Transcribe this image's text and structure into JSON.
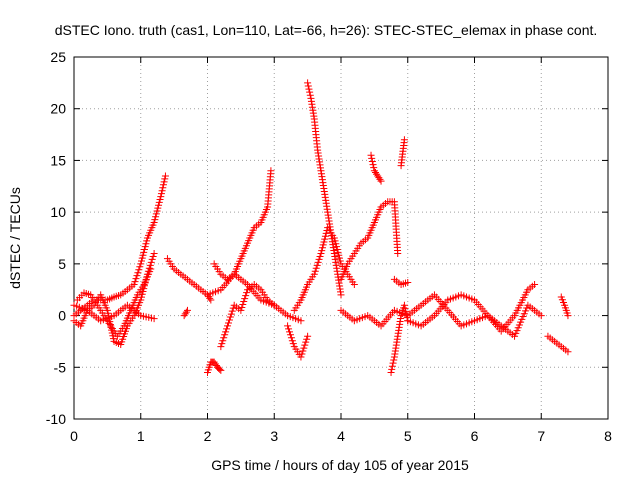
{
  "chart_data": {
    "type": "scatter",
    "title": "dSTEC Iono. truth (cas1, Lon=110, Lat=-66, h=26): STEC-STEC_elemax in phase cont.",
    "xlabel": "GPS time / hours of day 105 of year 2015",
    "ylabel": "dSTEC  / TECUs",
    "xlim": [
      0,
      8
    ],
    "ylim": [
      -10,
      25
    ],
    "xticks": [
      "0",
      "1",
      "2",
      "3",
      "4",
      "5",
      "6",
      "7",
      "8"
    ],
    "yticks": [
      "-10",
      "-5",
      "0",
      "5",
      "10",
      "15",
      "20",
      "25"
    ],
    "grid": true,
    "marker": "+",
    "color": "#ff0000",
    "series": [
      {
        "x": [
          0.0,
          0.1,
          0.2,
          0.3,
          0.4,
          0.5,
          0.6,
          0.7,
          0.8,
          0.9,
          1.0,
          1.1,
          1.2,
          1.3,
          1.37
        ],
        "y": [
          0,
          0.5,
          1,
          1.5,
          1.5,
          1.5,
          1.8,
          2,
          2.5,
          3,
          5,
          7.5,
          9,
          11.5,
          13.5
        ]
      },
      {
        "x": [
          0.0,
          0.1,
          0.2,
          0.3,
          0.4,
          0.5,
          0.6,
          0.7,
          0.8,
          0.9,
          1.0,
          1.1,
          1.2
        ],
        "y": [
          -0.5,
          -1,
          0.5,
          1,
          2,
          0.5,
          -2.5,
          -2.8,
          -1,
          0,
          1.5,
          4,
          6
        ]
      },
      {
        "x": [
          0.05,
          0.15,
          0.25,
          0.35,
          0.45,
          0.55,
          0.65,
          0.75,
          0.85,
          0.95,
          1.05,
          1.15
        ],
        "y": [
          1.5,
          2.2,
          2,
          1,
          0,
          -1,
          -2,
          -1,
          0.5,
          2,
          3,
          4.5
        ]
      },
      {
        "x": [
          0.0,
          0.2,
          0.4,
          0.6,
          0.8,
          1.0,
          1.2
        ],
        "y": [
          1,
          0.5,
          -0.5,
          0,
          1,
          0,
          -0.3
        ]
      },
      {
        "x": [
          1.4,
          1.5,
          1.6,
          1.7,
          1.8,
          1.9,
          2.0,
          2.05
        ],
        "y": [
          5.5,
          4.5,
          4,
          3.5,
          3,
          2.5,
          2,
          1.5
        ]
      },
      {
        "x": [
          1.65,
          1.7
        ],
        "y": [
          0,
          0.5
        ]
      },
      {
        "x": [
          2.0,
          2.05,
          2.1,
          2.15,
          2.2
        ],
        "y": [
          -5.5,
          -4.5,
          -4.5,
          -5,
          -5.3
        ]
      },
      {
        "x": [
          2.1,
          2.2,
          2.3,
          2.4,
          2.5,
          2.6,
          2.7,
          2.8,
          2.9,
          2.95
        ],
        "y": [
          5,
          4,
          3.5,
          4,
          5.5,
          7,
          8.5,
          9,
          10.5,
          14
        ]
      },
      {
        "x": [
          2.2,
          2.3,
          2.4,
          2.5,
          2.6,
          2.7,
          2.8,
          2.9,
          3.0
        ],
        "y": [
          -3,
          -1,
          1,
          0.5,
          2.5,
          3,
          2.5,
          1.5,
          1
        ]
      },
      {
        "x": [
          2.0,
          2.2,
          2.4,
          2.6,
          2.8,
          3.0,
          3.2,
          3.4
        ],
        "y": [
          2,
          2.5,
          4,
          3,
          1.5,
          1,
          0,
          -0.5
        ]
      },
      {
        "x": [
          3.2,
          3.3,
          3.4,
          3.5
        ],
        "y": [
          -1,
          -3,
          -4,
          -2
        ]
      },
      {
        "x": [
          3.5,
          3.55,
          3.6,
          3.65,
          3.7,
          3.75,
          3.8,
          3.85,
          3.9,
          3.95,
          4.0
        ],
        "y": [
          22.5,
          21,
          19,
          16,
          14,
          12,
          10,
          8,
          6,
          4,
          2
        ]
      },
      {
        "x": [
          3.3,
          3.4,
          3.5,
          3.6,
          3.7,
          3.8,
          3.9,
          4.0,
          4.1,
          4.2
        ],
        "y": [
          0.5,
          1.5,
          3,
          4,
          6,
          8.5,
          7.5,
          5,
          4,
          3
        ]
      },
      {
        "x": [
          4.0,
          4.1,
          4.2,
          4.3,
          4.4,
          4.5,
          4.6,
          4.7,
          4.8,
          4.85
        ],
        "y": [
          3.5,
          5,
          6,
          7,
          7.5,
          9,
          10.5,
          11,
          11,
          6
        ]
      },
      {
        "x": [
          4.45,
          4.5,
          4.55,
          4.6
        ],
        "y": [
          15.5,
          14,
          13.5,
          13
        ]
      },
      {
        "x": [
          4.75,
          4.8,
          4.85,
          4.9,
          4.95,
          5.0
        ],
        "y": [
          -5.5,
          -4,
          -2,
          0,
          1,
          -0.5
        ]
      },
      {
        "x": [
          4.9,
          4.95
        ],
        "y": [
          14.5,
          17
        ]
      },
      {
        "x": [
          4.8,
          4.9,
          5.0
        ],
        "y": [
          3.5,
          3,
          3.2
        ]
      },
      {
        "x": [
          4.0,
          4.2,
          4.4,
          4.6,
          4.8,
          5.0,
          5.2,
          5.4,
          5.6,
          5.8,
          6.0,
          6.2,
          6.4,
          6.6,
          6.8,
          6.9
        ],
        "y": [
          0.5,
          -0.5,
          0,
          -1,
          0.5,
          0,
          1,
          2,
          0.5,
          -1,
          -0.5,
          0,
          -1.5,
          0,
          2.5,
          3
        ]
      },
      {
        "x": [
          5.0,
          5.2,
          5.4,
          5.6,
          5.8,
          6.0,
          6.2,
          6.4,
          6.6,
          6.8,
          7.0
        ],
        "y": [
          -0.5,
          -1,
          0,
          1.5,
          2,
          1.5,
          0,
          -1,
          -2,
          1,
          0
        ]
      },
      {
        "x": [
          7.1,
          7.2,
          7.3,
          7.4
        ],
        "y": [
          -2,
          -2.5,
          -3,
          -3.5
        ]
      },
      {
        "x": [
          7.3,
          7.35,
          7.4
        ],
        "y": [
          1.8,
          1,
          0
        ]
      }
    ]
  }
}
